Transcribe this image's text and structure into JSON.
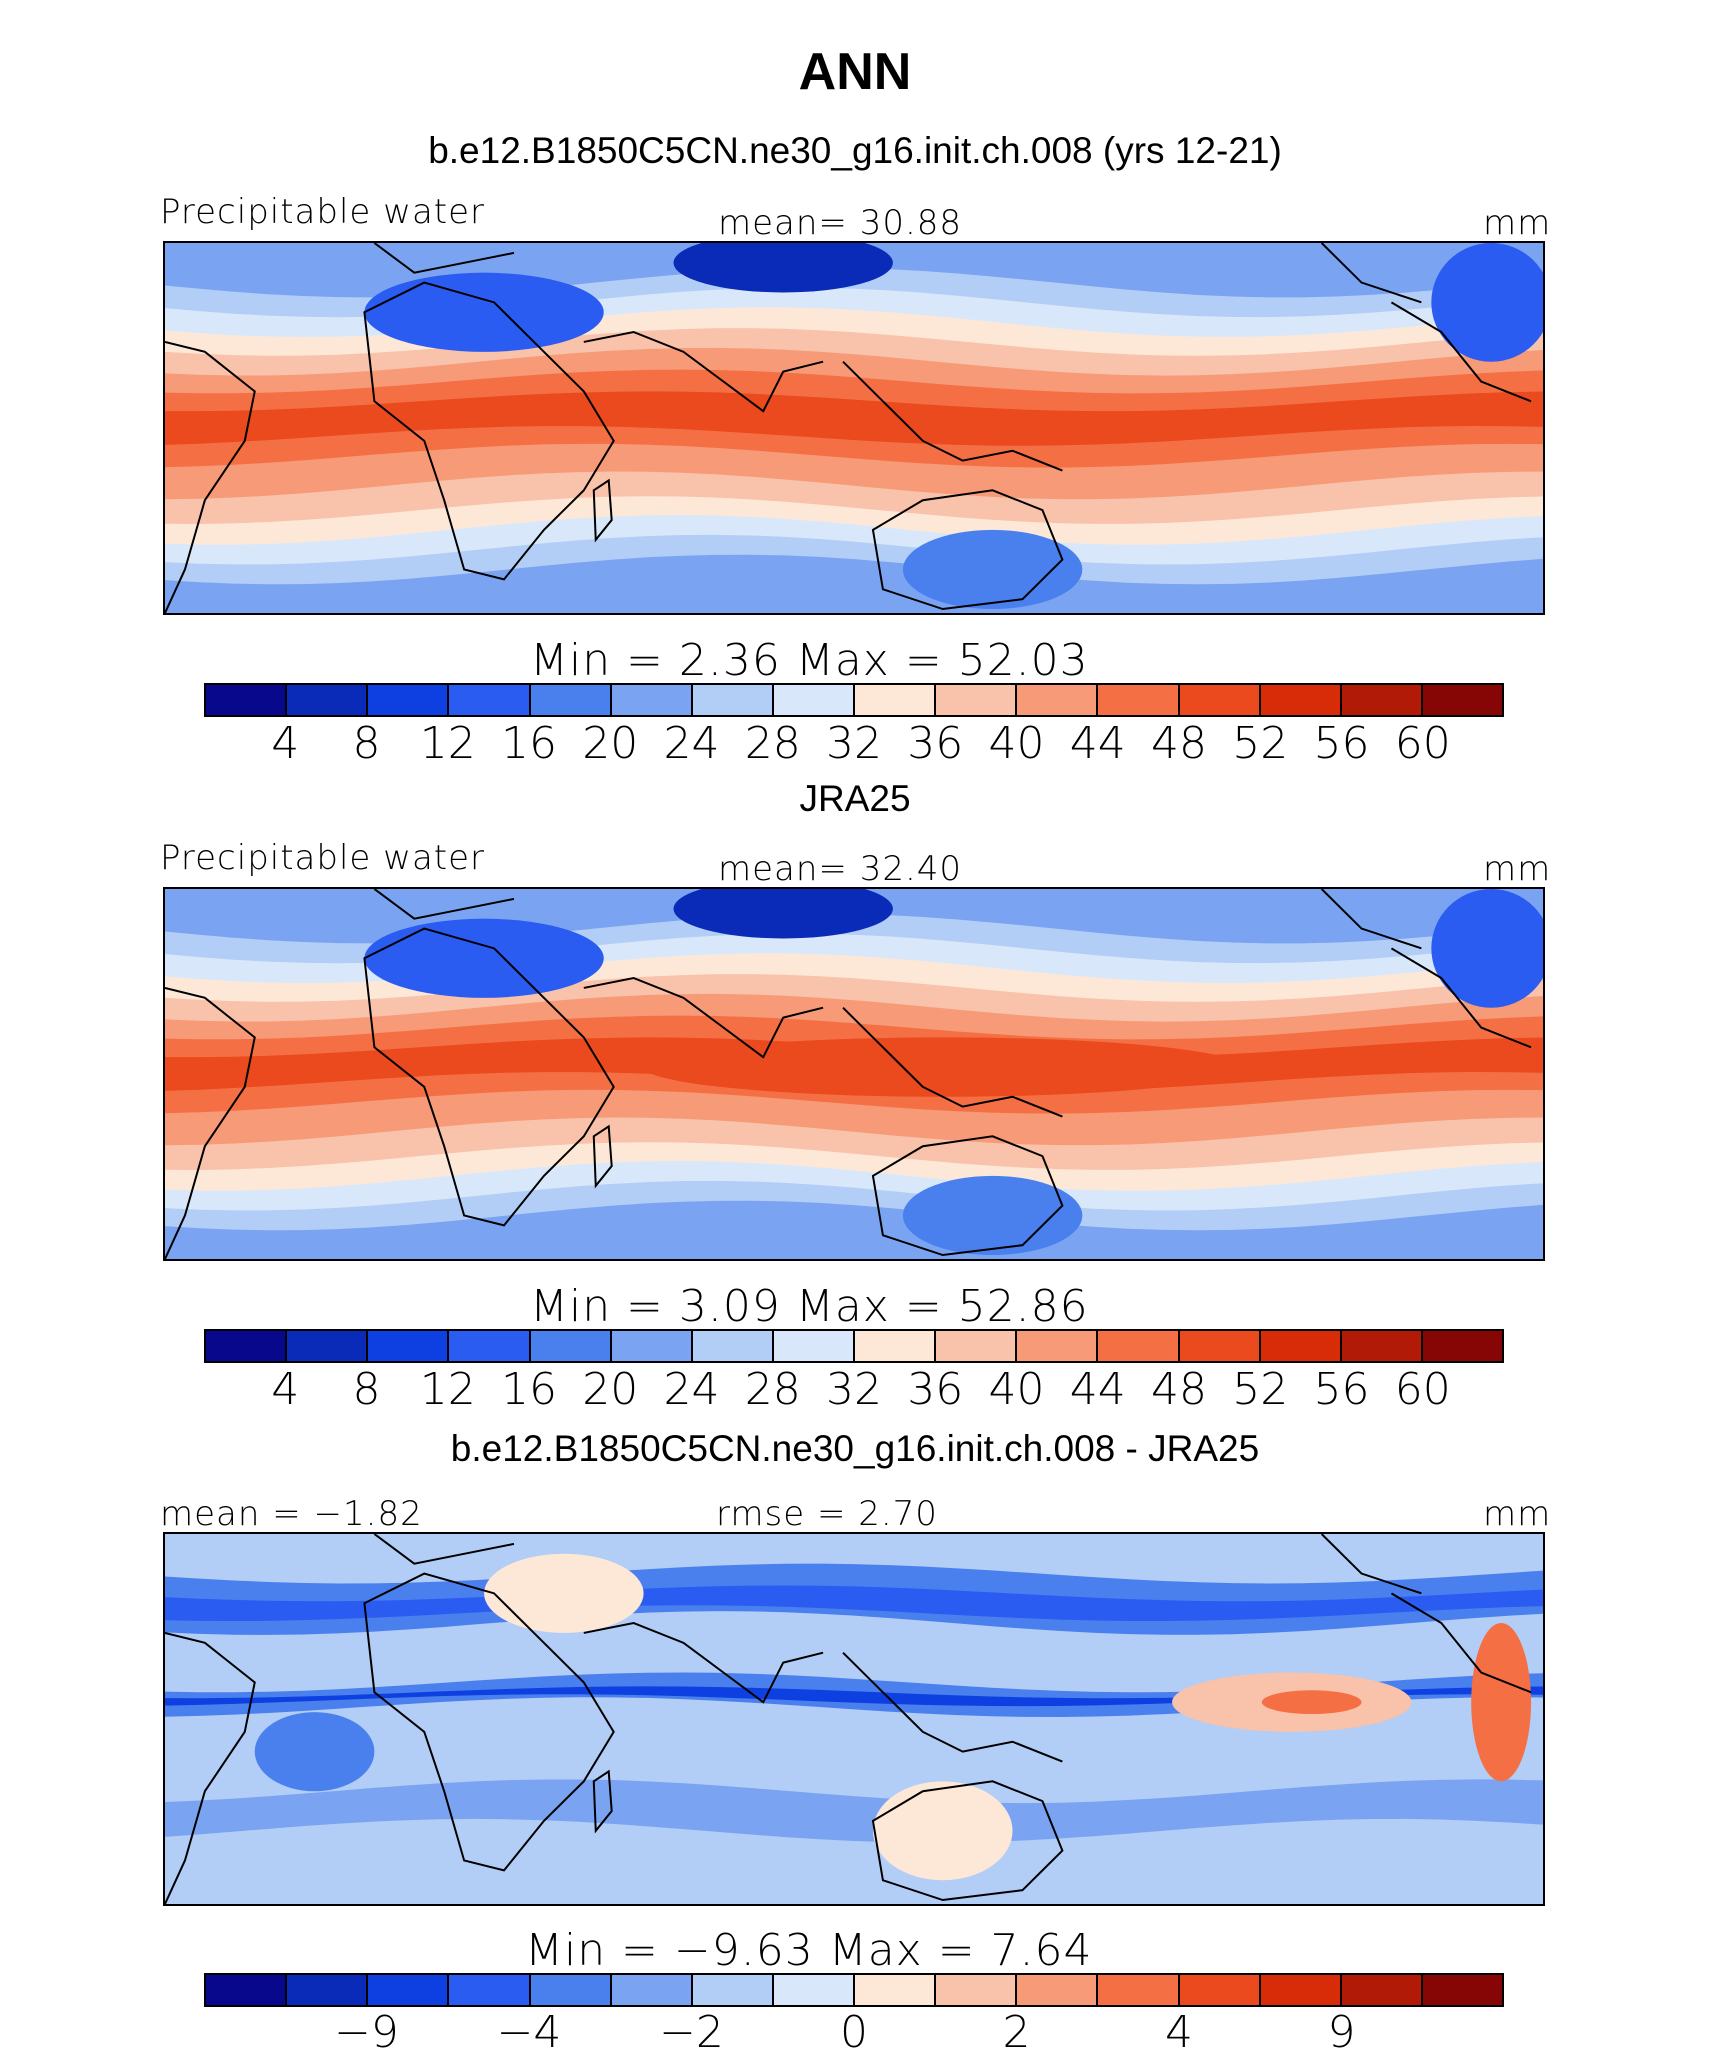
{
  "title": "ANN",
  "palette": [
    "#08088c",
    "#0a2ab8",
    "#0e3fe0",
    "#2a5cf2",
    "#4a7fee",
    "#7aa4f2",
    "#b2cdf6",
    "#d8e8fa",
    "#fde8d8",
    "#f9c2aa",
    "#f79a78",
    "#f47044",
    "#ea4a1e",
    "#d82c08",
    "#b01a06",
    "#860606"
  ],
  "panels": [
    {
      "subtitle": "b.e12.B1850C5CN.ne30_g16.init.ch.008 (yrs 12-21)",
      "left_label": "Precipitable water",
      "center_label": "mean=   30.88",
      "right_label": "mm",
      "stats": "Min  =     2.36  Max  =    52.03",
      "ticks": [
        "4",
        "8",
        "12",
        "16",
        "20",
        "24",
        "28",
        "32",
        "36",
        "40",
        "44",
        "48",
        "52",
        "56",
        "60"
      ],
      "field": "model"
    },
    {
      "subtitle": "JRA25",
      "left_label": "Precipitable water",
      "center_label": "mean=   32.40",
      "right_label": "mm",
      "stats": "Min  =     3.09  Max  =    52.86",
      "ticks": [
        "4",
        "8",
        "12",
        "16",
        "20",
        "24",
        "28",
        "32",
        "36",
        "40",
        "44",
        "48",
        "52",
        "56",
        "60"
      ],
      "field": "obs"
    },
    {
      "subtitle": "b.e12.B1850C5CN.ne30_g16.init.ch.008 - JRA25",
      "left_label": "mean  =  −1.82",
      "center_label": "rmse  =     2.70",
      "right_label": "mm",
      "stats": "Min  =   −9.63  Max  =     7.64",
      "ticks": [
        "−9",
        "",
        "−4",
        "",
        "−2",
        "",
        "0",
        "",
        "2",
        "",
        "4",
        "",
        "9"
      ],
      "field": "diff"
    }
  ]
}
